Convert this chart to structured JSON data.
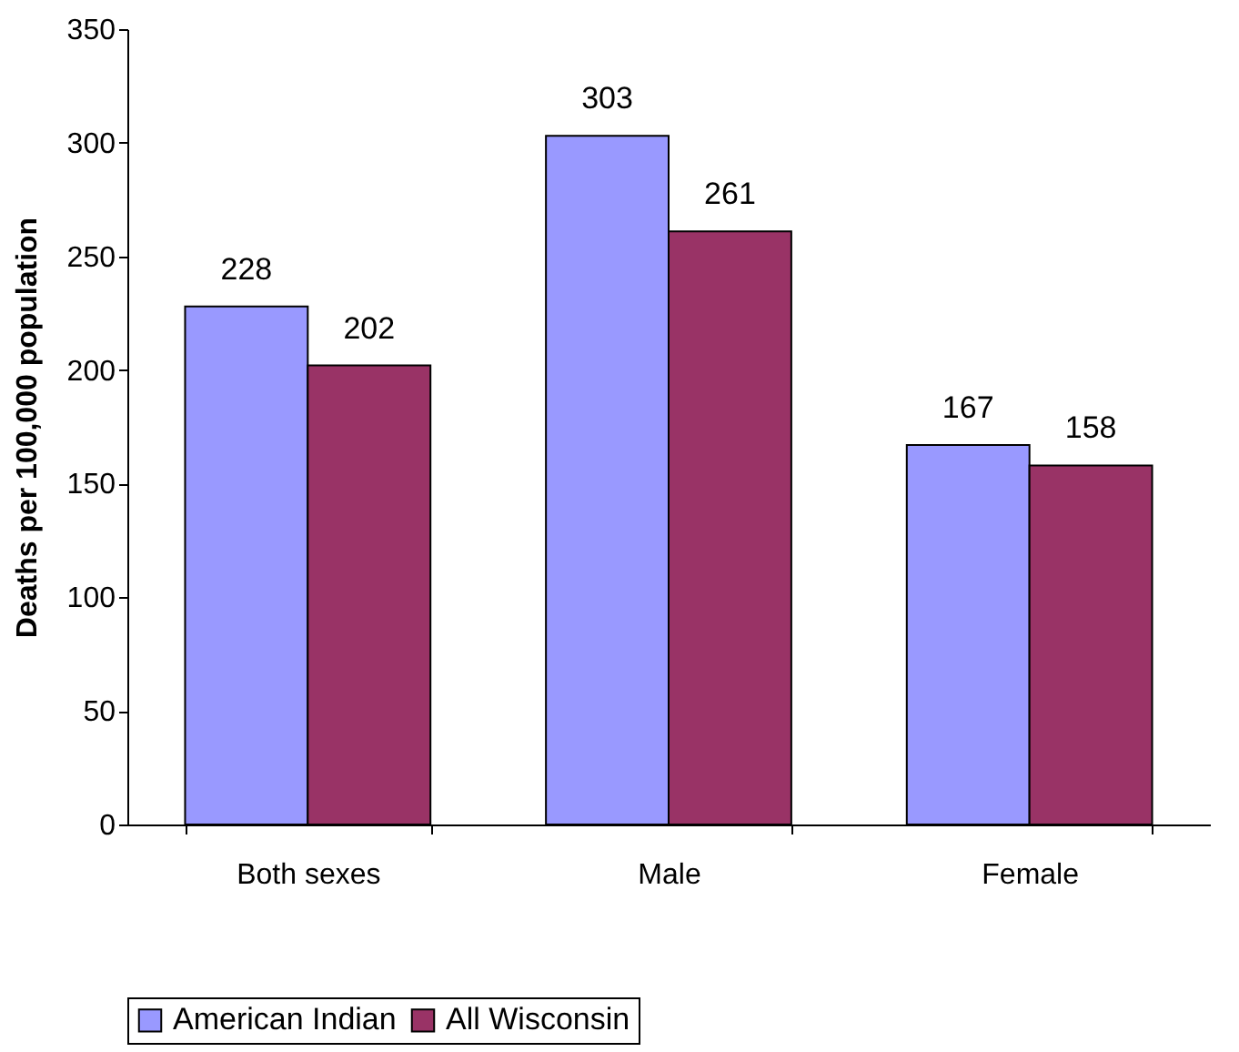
{
  "chart_data": {
    "type": "bar",
    "ylabel": "Deaths per 100,000 population",
    "categories": [
      "Both sexes",
      "Male",
      "Female"
    ],
    "series": [
      {
        "name": "American Indian",
        "color": "#9999ff",
        "values": [
          228,
          303,
          167
        ]
      },
      {
        "name": "All Wisconsin",
        "color": "#993366",
        "values": [
          202,
          261,
          158
        ]
      }
    ],
    "ylim": [
      0,
      350
    ],
    "yticks": [
      0,
      50,
      100,
      150,
      200,
      250,
      300,
      350
    ],
    "data_labels": true,
    "legend": "bottom"
  }
}
